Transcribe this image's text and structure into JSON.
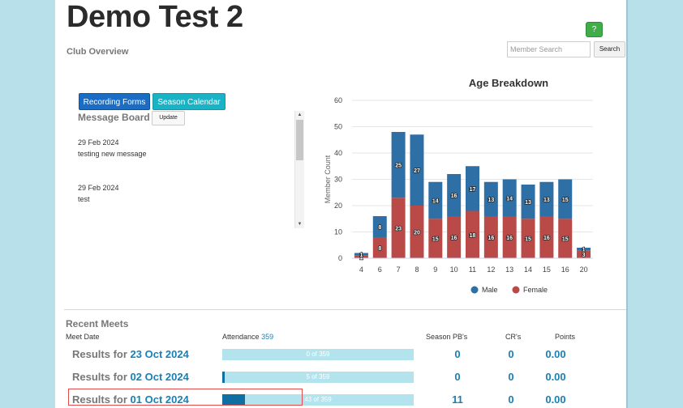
{
  "page": {
    "title": "Demo Test 2",
    "subtitle": "Club Overview",
    "help_label": "?",
    "search": {
      "placeholder": "Member Search",
      "value": "",
      "button": "Search"
    }
  },
  "buttons": {
    "recording_forms": "Recording Forms",
    "season_calendar": "Season Calendar"
  },
  "message_board": {
    "title": "Message Board",
    "update_label": "Update",
    "messages": [
      {
        "date": "29 Feb 2024",
        "text": "testing new message"
      },
      {
        "date": "29 Feb 2024",
        "text": "test"
      }
    ]
  },
  "chart_data": {
    "type": "bar",
    "stacked": true,
    "title": "Age Breakdown",
    "xlabel": "",
    "ylabel": "Member Count",
    "categories": [
      "4",
      "6",
      "7",
      "8",
      "9",
      "10",
      "11",
      "12",
      "13",
      "14",
      "15",
      "16",
      "20"
    ],
    "series": [
      {
        "name": "Male",
        "color": "#2e6fa6",
        "values": [
          1,
          8,
          25,
          27,
          14,
          16,
          17,
          13,
          14,
          13,
          13,
          15,
          1
        ]
      },
      {
        "name": "Female",
        "color": "#b94a48",
        "values": [
          1,
          8,
          23,
          20,
          15,
          16,
          18,
          16,
          16,
          15,
          16,
          15,
          3
        ]
      }
    ],
    "ylim": [
      0,
      60
    ],
    "yticks": [
      0,
      10,
      20,
      30,
      40,
      50,
      60
    ],
    "grid": true,
    "legend_position": "bottom"
  },
  "recent_meets": {
    "title": "Recent Meets",
    "headers": {
      "meet_date": "Meet Date",
      "attendance": "Attendance",
      "attendance_total": "359",
      "season_pbs": "Season PB's",
      "crs": "CR's",
      "points": "Points"
    },
    "results_prefix": "Results for",
    "rows": [
      {
        "date": "23 Oct 2024",
        "attendance_text": "0 of 359",
        "attendance_fraction": 0.0,
        "pbs": "0",
        "crs": "0",
        "points": "0.00"
      },
      {
        "date": "02 Oct 2024",
        "attendance_text": "5 of 359",
        "attendance_fraction": 0.014,
        "pbs": "0",
        "crs": "0",
        "points": "0.00"
      },
      {
        "date": "01 Oct 2024",
        "attendance_text": "43 of 359",
        "attendance_fraction": 0.12,
        "pbs": "11",
        "crs": "0",
        "points": "0.00"
      }
    ]
  }
}
